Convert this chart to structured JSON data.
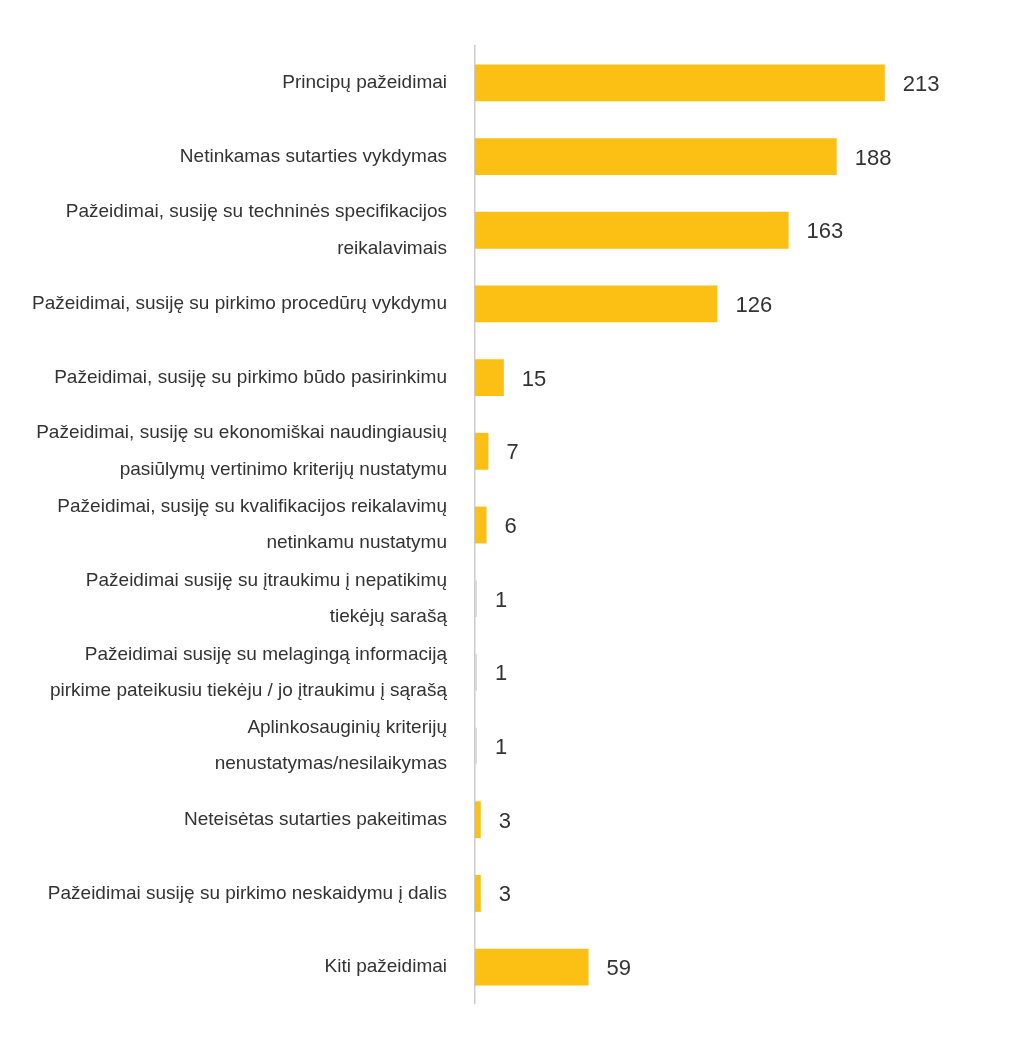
{
  "chart_data": {
    "type": "bar",
    "orientation": "horizontal",
    "data_labels": true,
    "legend": false,
    "tick_labels": "y",
    "categories": [
      "Principų pažeidimai",
      "Netinkamas sutarties vykdymas",
      "Pažeidimai, susiję su techninės specifikacijos reikalavimais",
      "Pažeidimai, susiję su pirkimo procedūrų vykdymu",
      "Pažeidimai, susiję su pirkimo būdo pasirinkimu",
      "Pažeidimai, susiję su ekonomiškai naudingiausių pasiūlymų vertinimo kriterijų nustatymu",
      "Pažeidimai, susiję su kvalifikacijos reikalavimų netinkamu nustatymu",
      "Pažeidimai susiję su įtraukimu į nepatikimų tiekėjų sarašą",
      "Pažeidimai susiję su melagingą informaciją pirkime pateikusiu tiekėju / jo įtraukimu į sąrašą",
      "Aplinkosauginių kriterijų nenustatymas/nesilaikymas",
      "Neteisėtas sutarties pakeitimas",
      "Pažeidimai susiję su pirkimo neskaidymu į dalis",
      "Kiti pažeidimai"
    ],
    "values": [
      213,
      188,
      163,
      126,
      15,
      7,
      6,
      1,
      1,
      1,
      3,
      3,
      59
    ],
    "colors": [
      "#fcbf14",
      "#fcbf14",
      "#fcbf14",
      "#fcbf14",
      "#fcbf14",
      "#fcbf14",
      "#fcbf14",
      "#d9d9d9",
      "#d9d9d9",
      "#d9d9d9",
      "#fcbf14",
      "#fcbf14",
      "#fcbf14"
    ]
  }
}
